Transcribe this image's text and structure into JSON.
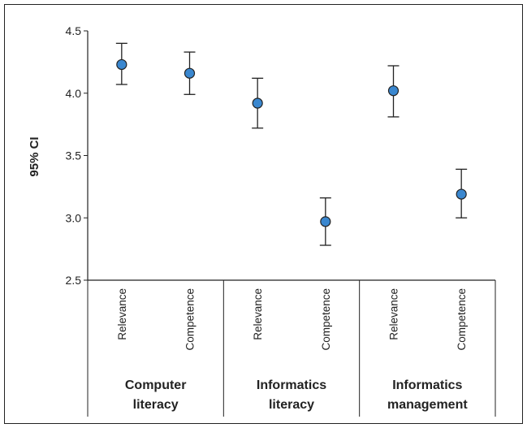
{
  "chart_data": {
    "type": "scatter",
    "ylabel": "95% CI",
    "ylim": [
      2.5,
      4.5
    ],
    "yticks": [
      "4.5",
      "4.0",
      "3.5",
      "3.0",
      "2.5"
    ],
    "ytick_values": [
      4.5,
      4.0,
      3.5,
      3.0,
      2.5
    ],
    "groups": [
      {
        "label_line1": "Computer",
        "label_line2": "literacy"
      },
      {
        "label_line1": "Informatics",
        "label_line2": "literacy"
      },
      {
        "label_line1": "Informatics",
        "label_line2": "management"
      }
    ],
    "categories": [
      "Relevance",
      "Competence",
      "Relevance",
      "Competence",
      "Relevance",
      "Competence"
    ],
    "points": [
      {
        "group": 0,
        "category": "Relevance",
        "value": 4.23,
        "ci_low": 4.07,
        "ci_high": 4.4
      },
      {
        "group": 0,
        "category": "Competence",
        "value": 4.16,
        "ci_low": 3.99,
        "ci_high": 4.33
      },
      {
        "group": 1,
        "category": "Relevance",
        "value": 3.92,
        "ci_low": 3.72,
        "ci_high": 4.12
      },
      {
        "group": 1,
        "category": "Competence",
        "value": 2.97,
        "ci_low": 2.78,
        "ci_high": 3.16
      },
      {
        "group": 2,
        "category": "Relevance",
        "value": 4.02,
        "ci_low": 3.81,
        "ci_high": 4.22
      },
      {
        "group": 2,
        "category": "Competence",
        "value": 3.19,
        "ci_low": 3.0,
        "ci_high": 3.39
      }
    ],
    "grid": false,
    "marker_color": "#3a87cf"
  }
}
